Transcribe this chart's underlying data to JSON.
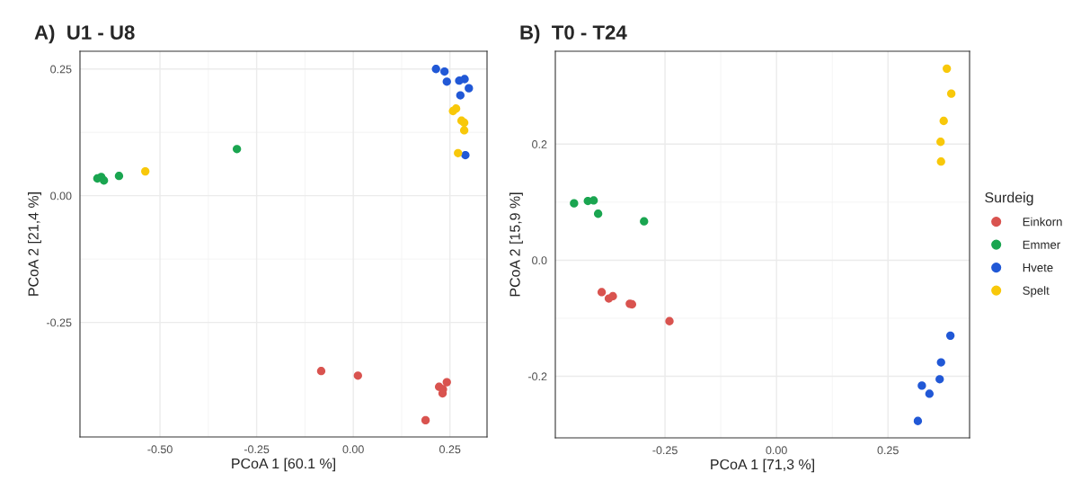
{
  "chart_data": [
    {
      "type": "scatter",
      "title": "A)  U1 - U8",
      "xlabel": "PCoA 1 [60.1 %]",
      "ylabel": "PCoA 2 [21,4 %]",
      "xlim": [
        -0.707,
        0.346
      ],
      "ylim": [
        -0.476,
        0.285
      ],
      "xticks": [
        {
          "value": -0.5,
          "label": "-0.50"
        },
        {
          "value": -0.25,
          "label": "-0.25"
        },
        {
          "value": 0,
          "label": "0.00"
        },
        {
          "value": 0.25,
          "label": "0.25"
        }
      ],
      "yticks": [
        {
          "value": -0.25,
          "label": "-0.25"
        },
        {
          "value": 0,
          "label": "0.00"
        },
        {
          "value": 0.25,
          "label": "0.25"
        }
      ],
      "grid": true,
      "marker": "circle",
      "series": [
        {
          "color": "#d9534f",
          "x": [
            -0.083,
            0.012,
            0.242,
            0.222,
            0.232,
            0.231,
            0.187
          ],
          "values": [
            -0.346,
            -0.355,
            -0.368,
            -0.377,
            -0.382,
            -0.39,
            -0.443
          ]
        },
        {
          "color": "#1aa550",
          "x": [
            -0.662,
            -0.652,
            -0.645,
            -0.606,
            -0.301
          ],
          "values": [
            0.034,
            0.037,
            0.03,
            0.039,
            0.092
          ]
        },
        {
          "color": "#2158d6",
          "x": [
            0.214,
            0.236,
            0.242,
            0.274,
            0.288,
            0.299,
            0.277,
            0.29
          ],
          "values": [
            0.25,
            0.245,
            0.225,
            0.227,
            0.23,
            0.212,
            0.198,
            0.08
          ]
        },
        {
          "color": "#f8c80a",
          "x": [
            -0.538,
            0.258,
            0.266,
            0.28,
            0.287,
            0.287,
            0.271
          ],
          "values": [
            0.048,
            0.167,
            0.172,
            0.148,
            0.144,
            0.129,
            0.084
          ]
        }
      ]
    },
    {
      "type": "scatter",
      "title": "B)  T0 - T24",
      "xlabel": "PCoA 1 [71,3 %]",
      "ylabel": "PCoA 2 [15,9 %]",
      "legend_title": "Surdeig",
      "xlim": [
        -0.496,
        0.433
      ],
      "ylim": [
        -0.306,
        0.36
      ],
      "xticks": [
        {
          "value": -0.25,
          "label": "-0.25"
        },
        {
          "value": 0,
          "label": "0.00"
        },
        {
          "value": 0.25,
          "label": "0.25"
        }
      ],
      "yticks": [
        {
          "value": -0.2,
          "label": "-0.2"
        },
        {
          "value": 0,
          "label": "0.0"
        },
        {
          "value": 0.2,
          "label": "0.2"
        }
      ],
      "grid": true,
      "marker": "circle",
      "legend": "right",
      "series": [
        {
          "name": "Einkorn",
          "color": "#d9534f",
          "x": [
            -0.392,
            -0.376,
            -0.367,
            -0.329,
            -0.324,
            -0.24
          ],
          "values": [
            -0.055,
            -0.066,
            -0.062,
            -0.075,
            -0.076,
            -0.105
          ]
        },
        {
          "name": "Emmer",
          "color": "#1aa550",
          "x": [
            -0.454,
            -0.423,
            -0.41,
            -0.4,
            -0.297
          ],
          "values": [
            0.098,
            0.102,
            0.103,
            0.08,
            0.067
          ]
        },
        {
          "name": "Hvete",
          "color": "#2158d6",
          "x": [
            0.39,
            0.369,
            0.366,
            0.326,
            0.343,
            0.317
          ],
          "values": [
            -0.13,
            -0.176,
            -0.205,
            -0.216,
            -0.23,
            -0.277
          ]
        },
        {
          "name": "Spelt",
          "color": "#f8c80a",
          "x": [
            0.382,
            0.392,
            0.375,
            0.368,
            0.369
          ],
          "values": [
            0.33,
            0.287,
            0.24,
            0.204,
            0.17
          ]
        }
      ]
    }
  ]
}
